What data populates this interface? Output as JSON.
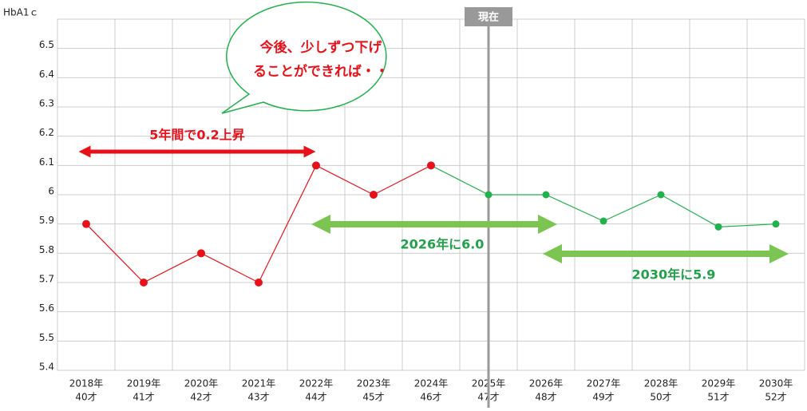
{
  "chart_data": {
    "type": "line",
    "y_label": "HbA1ｃ",
    "categories": [
      "2018年",
      "2019年",
      "2020年",
      "2021年",
      "2022年",
      "2023年",
      "2024年",
      "2025年",
      "2026年",
      "2027年",
      "2028年",
      "2029年",
      "2030年"
    ],
    "ages": [
      "40才",
      "41才",
      "42才",
      "43才",
      "44才",
      "45才",
      "46才",
      "47才",
      "48才",
      "49才",
      "50才",
      "51才",
      "52才"
    ],
    "series": [
      {
        "color": "#e8111a",
        "values": [
          5.9,
          5.7,
          5.8,
          5.7,
          6.1,
          6.0,
          6.1,
          null,
          null,
          null,
          null,
          null,
          null
        ]
      },
      {
        "color": "#22b14c",
        "values": [
          null,
          null,
          null,
          null,
          null,
          null,
          6.1,
          6.0,
          6.0,
          5.91,
          6.0,
          5.89,
          5.9
        ]
      }
    ],
    "ylim": [
      5.4,
      6.6
    ],
    "yticks": [
      5.4,
      5.5,
      5.6,
      5.7,
      5.8,
      5.9,
      6,
      6.1,
      6.2,
      6.3,
      6.4,
      6.5
    ],
    "grid": true,
    "current": {
      "label": "現在",
      "category": "2025年"
    },
    "annotations": [
      "5年間で0.2上昇",
      "2026年に6.0",
      "2030年に5.9"
    ],
    "bubble": [
      "今後、少しずつ下げ",
      "ることができれば・・"
    ]
  }
}
